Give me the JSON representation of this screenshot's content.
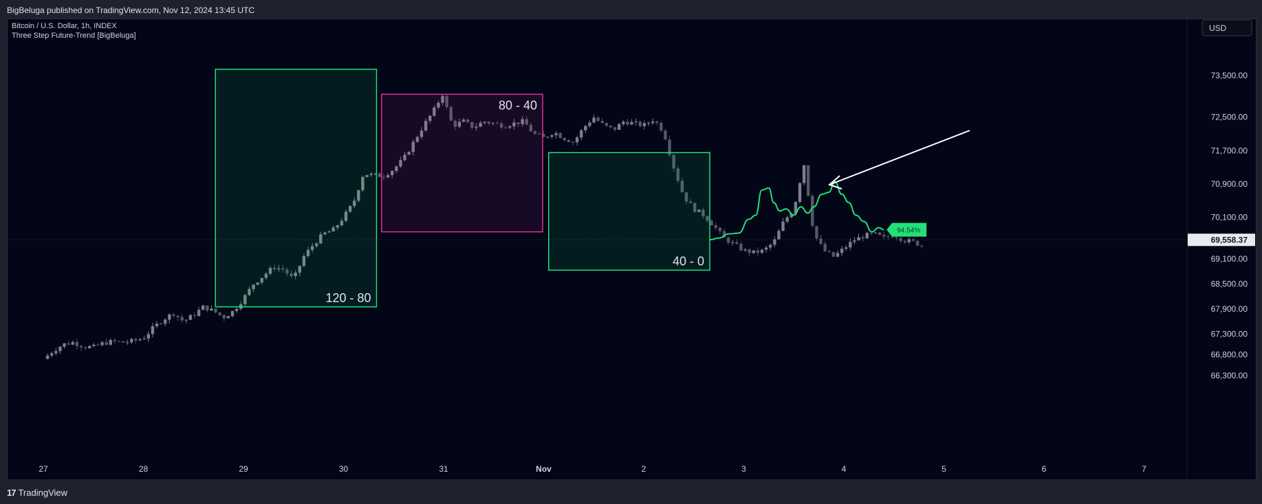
{
  "header": {
    "published": "BigBeluga published on TradingView.com, Nov 12, 2024 13:45 UTC"
  },
  "chart": {
    "symbol": "Bitcoin / U.S. Dollar, 1h, INDEX",
    "indicator": "Three Step Future-Trend [BigBeluga]",
    "currency_button": "USD",
    "current_price": "69,558.37",
    "forecast_badge": "94.54%"
  },
  "footer": {
    "brand_icon": "17",
    "brand": "TradingView"
  },
  "colors": {
    "background": "#020617",
    "green": "#22e07a",
    "magenta": "#e0309a",
    "candle": "#6b6f7a",
    "text": "#d1d4dc"
  },
  "chart_data": {
    "type": "candlestick",
    "y_ticks": [
      "73,500.00",
      "72,500.00",
      "71,700.00",
      "70,900.00",
      "70,100.00",
      "69,100.00",
      "68,500.00",
      "67,900.00",
      "67,300.00",
      "66,800.00",
      "66,300.00"
    ],
    "y_tick_values": [
      73500,
      72500,
      71700,
      70900,
      70100,
      69100,
      68500,
      67900,
      67300,
      66800,
      66300
    ],
    "x_ticks": [
      "27",
      "28",
      "29",
      "30",
      "31",
      "Nov",
      "2",
      "3",
      "4",
      "5",
      "6",
      "7"
    ],
    "x_tick_values": [
      27,
      28,
      29,
      30,
      31,
      32,
      33,
      34,
      35,
      36,
      37,
      38
    ],
    "boxes": [
      {
        "label": "120 - 80",
        "x0": 28.72,
        "x1": 30.33,
        "y_high": 73650,
        "y_low": 67950,
        "color": "#22e07a"
      },
      {
        "label": "80 - 40",
        "x0": 30.38,
        "x1": 31.99,
        "y_high": 73050,
        "y_low": 69750,
        "color": "#e0309a"
      },
      {
        "label": "40 - 0",
        "x0": 32.05,
        "x1": 33.66,
        "y_high": 71650,
        "y_low": 68830,
        "color": "#22e07a"
      }
    ],
    "price_path": [
      [
        27.0,
        66700
      ],
      [
        27.1,
        66900
      ],
      [
        27.2,
        67050
      ],
      [
        27.3,
        67100
      ],
      [
        27.4,
        67000
      ],
      [
        27.5,
        66980
      ],
      [
        27.6,
        67080
      ],
      [
        27.7,
        67120
      ],
      [
        27.8,
        67100
      ],
      [
        27.9,
        67130
      ],
      [
        28.0,
        67200
      ],
      [
        28.1,
        67450
      ],
      [
        28.2,
        67650
      ],
      [
        28.3,
        67800
      ],
      [
        28.4,
        67600
      ],
      [
        28.5,
        67750
      ],
      [
        28.6,
        67950
      ],
      [
        28.7,
        67850
      ],
      [
        28.8,
        67700
      ],
      [
        28.9,
        67850
      ],
      [
        29.0,
        68150
      ],
      [
        29.1,
        68500
      ],
      [
        29.2,
        68700
      ],
      [
        29.3,
        68900
      ],
      [
        29.4,
        68850
      ],
      [
        29.5,
        68600
      ],
      [
        29.6,
        69150
      ],
      [
        29.7,
        69450
      ],
      [
        29.8,
        69700
      ],
      [
        29.9,
        69800
      ],
      [
        30.0,
        70100
      ],
      [
        30.1,
        70450
      ],
      [
        30.2,
        71150
      ],
      [
        30.3,
        71100
      ],
      [
        30.4,
        71100
      ],
      [
        30.5,
        71250
      ],
      [
        30.6,
        71500
      ],
      [
        30.7,
        71900
      ],
      [
        30.8,
        72300
      ],
      [
        30.9,
        72650
      ],
      [
        31.0,
        73100
      ],
      [
        31.05,
        72500
      ],
      [
        31.1,
        72300
      ],
      [
        31.2,
        72400
      ],
      [
        31.3,
        72250
      ],
      [
        31.4,
        72400
      ],
      [
        31.5,
        72350
      ],
      [
        31.6,
        72300
      ],
      [
        31.7,
        72350
      ],
      [
        31.8,
        72400
      ],
      [
        31.9,
        72100
      ],
      [
        32.0,
        72000
      ],
      [
        32.1,
        72150
      ],
      [
        32.2,
        72000
      ],
      [
        32.3,
        71900
      ],
      [
        32.4,
        72250
      ],
      [
        32.5,
        72500
      ],
      [
        32.6,
        72300
      ],
      [
        32.7,
        72200
      ],
      [
        32.8,
        72400
      ],
      [
        32.9,
        72350
      ],
      [
        33.0,
        72300
      ],
      [
        33.1,
        72450
      ],
      [
        33.2,
        72150
      ],
      [
        33.3,
        71300
      ],
      [
        33.4,
        70600
      ],
      [
        33.5,
        70300
      ],
      [
        33.6,
        70150
      ],
      [
        33.7,
        69900
      ],
      [
        33.8,
        69600
      ],
      [
        33.9,
        69450
      ],
      [
        34.0,
        69300
      ],
      [
        34.1,
        69250
      ],
      [
        34.2,
        69300
      ],
      [
        34.3,
        69500
      ],
      [
        34.4,
        70000
      ],
      [
        34.5,
        70300
      ],
      [
        34.6,
        71400
      ],
      [
        34.7,
        69700
      ],
      [
        34.8,
        69300
      ],
      [
        34.9,
        69150
      ],
      [
        35.0,
        69350
      ],
      [
        35.1,
        69550
      ],
      [
        35.2,
        69650
      ],
      [
        35.3,
        69700
      ],
      [
        35.4,
        69600
      ],
      [
        35.5,
        69680
      ],
      [
        35.6,
        69550
      ],
      [
        35.7,
        69500
      ],
      [
        35.8,
        69400
      ]
    ],
    "forecast_path": [
      [
        33.66,
        69560
      ],
      [
        33.75,
        69600
      ],
      [
        33.85,
        69700
      ],
      [
        33.95,
        69720
      ],
      [
        34.05,
        70050
      ],
      [
        34.12,
        70150
      ],
      [
        34.18,
        70750
      ],
      [
        34.25,
        70800
      ],
      [
        34.3,
        70450
      ],
      [
        34.36,
        70250
      ],
      [
        34.42,
        70300
      ],
      [
        34.5,
        70150
      ],
      [
        34.57,
        70350
      ],
      [
        34.64,
        70200
      ],
      [
        34.7,
        70350
      ],
      [
        34.78,
        70650
      ],
      [
        34.85,
        70700
      ],
      [
        34.91,
        70950
      ],
      [
        34.98,
        70650
      ],
      [
        35.05,
        70450
      ],
      [
        35.12,
        70150
      ],
      [
        35.2,
        70000
      ],
      [
        35.28,
        69750
      ],
      [
        35.35,
        69850
      ],
      [
        35.4,
        69800
      ]
    ]
  }
}
